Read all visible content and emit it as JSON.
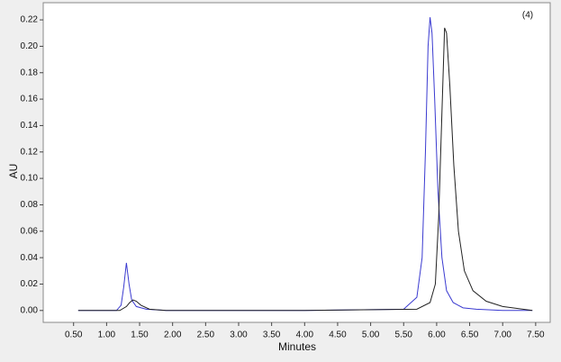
{
  "chart_data": {
    "type": "line",
    "annotation": "(4)",
    "x_label": "Minutes",
    "y_label": "AU",
    "xlim": [
      0.04,
      7.72
    ],
    "ylim": [
      -0.009,
      0.233
    ],
    "xticks": [
      {
        "value": 0.5,
        "label": "0.50"
      },
      {
        "value": 1.0,
        "label": "1.00"
      },
      {
        "value": 1.5,
        "label": "1.50"
      },
      {
        "value": 2.0,
        "label": "2.00"
      },
      {
        "value": 2.5,
        "label": "2.50"
      },
      {
        "value": 3.0,
        "label": "3.00"
      },
      {
        "value": 3.5,
        "label": "3.50"
      },
      {
        "value": 4.0,
        "label": "4.00"
      },
      {
        "value": 4.5,
        "label": "4.50"
      },
      {
        "value": 5.0,
        "label": "5.00"
      },
      {
        "value": 5.5,
        "label": "5.50"
      },
      {
        "value": 6.0,
        "label": "6.00"
      },
      {
        "value": 6.5,
        "label": "6.50"
      },
      {
        "value": 7.0,
        "label": "7.00"
      },
      {
        "value": 7.5,
        "label": "7.50"
      }
    ],
    "yticks": [
      {
        "value": 0,
        "label": "0.00"
      },
      {
        "value": 0.02,
        "label": "0.02"
      },
      {
        "value": 0.04,
        "label": "0.04"
      },
      {
        "value": 0.06,
        "label": "0.06"
      },
      {
        "value": 0.08,
        "label": "0.08"
      },
      {
        "value": 0.1,
        "label": "0.10"
      },
      {
        "value": 0.12,
        "label": "0.12"
      },
      {
        "value": 0.14,
        "label": "0.14"
      },
      {
        "value": 0.16,
        "label": "0.16"
      },
      {
        "value": 0.18,
        "label": "0.18"
      },
      {
        "value": 0.2,
        "label": "0.20"
      },
      {
        "value": 0.22,
        "label": "0.22"
      }
    ],
    "series": [
      {
        "color": "#3a3ad0",
        "x": [
          0.57,
          1.15,
          1.22,
          1.26,
          1.3,
          1.34,
          1.38,
          1.45,
          1.6,
          1.9,
          4.0,
          5.5,
          5.7,
          5.78,
          5.83,
          5.87,
          5.9,
          5.93,
          5.97,
          6.02,
          6.08,
          6.15,
          6.25,
          6.4,
          6.6,
          7.0,
          7.45
        ],
        "values": [
          0,
          0,
          0.004,
          0.018,
          0.036,
          0.02,
          0.008,
          0.003,
          0.001,
          0,
          0,
          0.001,
          0.01,
          0.04,
          0.12,
          0.2,
          0.222,
          0.21,
          0.16,
          0.09,
          0.04,
          0.015,
          0.006,
          0.002,
          0.001,
          0,
          0
        ]
      },
      {
        "color": "#222222",
        "x": [
          0.57,
          1.2,
          1.3,
          1.35,
          1.4,
          1.45,
          1.52,
          1.65,
          1.9,
          4.0,
          5.7,
          5.9,
          5.98,
          6.03,
          6.08,
          6.12,
          6.15,
          6.2,
          6.26,
          6.33,
          6.42,
          6.55,
          6.75,
          7.0,
          7.45
        ],
        "values": [
          0,
          0,
          0.003,
          0.006,
          0.008,
          0.007,
          0.004,
          0.001,
          0,
          0,
          0.001,
          0.006,
          0.02,
          0.07,
          0.15,
          0.214,
          0.21,
          0.17,
          0.11,
          0.06,
          0.03,
          0.015,
          0.007,
          0.003,
          0
        ]
      }
    ]
  }
}
